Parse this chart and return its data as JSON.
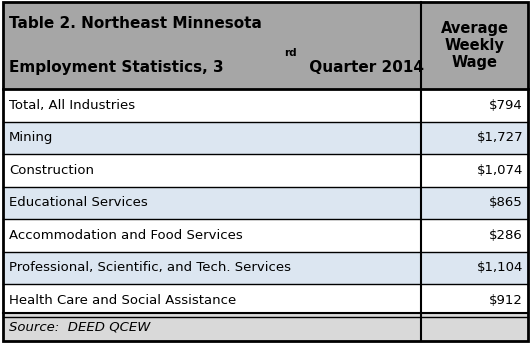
{
  "col_header": "Average\nWeekly\nWage",
  "rows": [
    [
      "Total, All Industries",
      "$794"
    ],
    [
      "Mining",
      "$1,727"
    ],
    [
      "Construction",
      "$1,074"
    ],
    [
      "Educational Services",
      "$865"
    ],
    [
      "Accommodation and Food Services",
      "$286"
    ],
    [
      "Professional, Scientific, and Tech. Services",
      "$1,104"
    ],
    [
      "Health Care and Social Assistance",
      "$912"
    ]
  ],
  "source": "Source:  DEED QCEW",
  "header_bg": "#a6a6a6",
  "row_bg_odd": "#ffffff",
  "row_bg_even": "#dce6f1",
  "source_bg": "#d9d9d9",
  "border_color": "#000000",
  "text_color": "#000000",
  "fig_bg": "#ffffff",
  "col_split": 0.795,
  "figsize": [
    5.31,
    3.43
  ],
  "dpi": 100
}
